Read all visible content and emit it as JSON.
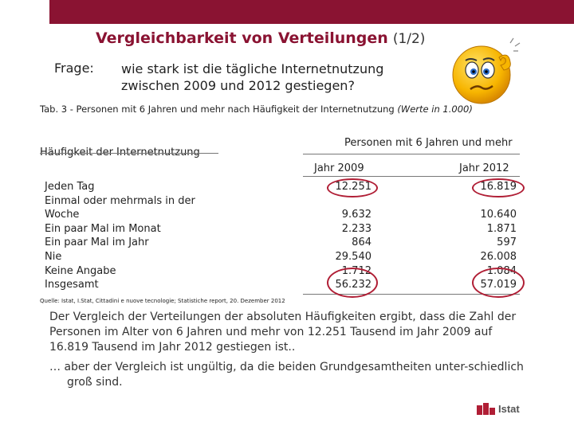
{
  "header": {
    "title": "Vergleichbarkeit von Verteilungen",
    "part": "(1/2)",
    "colors": {
      "brand": "#8a1332",
      "highlight": "#b01e35"
    }
  },
  "question": {
    "label": "Frage:",
    "line1": "wie stark ist die tägliche Internetnutzung",
    "line2": "zwischen 2009 und 2012 gestiegen?",
    "icon": "confused-smiley-icon"
  },
  "table": {
    "caption": "Tab. 3 - Personen mit 6 Jahren und mehr nach Häufigkeit der Internetnutzung",
    "caption_note": "(Werte in 1.000)",
    "left_header": "Häufigkeit der Internetnutzung",
    "right_header": "Personen mit 6 Jahren und mehr",
    "year_2009": "Jahr 2009",
    "year_2012": "Jahr 2012",
    "rows": [
      {
        "label_lines": [
          "Jeden Tag"
        ],
        "v2009": "12.251",
        "v2012": "16.819"
      },
      {
        "label_lines": [
          "Einmal oder mehrmals in der",
          "Woche"
        ],
        "v2009": "9.632",
        "v2012": "10.640"
      },
      {
        "label_lines": [
          "Ein paar Mal im Monat"
        ],
        "v2009": "2.233",
        "v2012": "1.871"
      },
      {
        "label_lines": [
          "Ein paar Mal im Jahr"
        ],
        "v2009": "864",
        "v2012": "597"
      },
      {
        "label_lines": [
          "Nie"
        ],
        "v2009": "29.540",
        "v2012": "26.008"
      },
      {
        "label_lines": [
          "Keine Angabe"
        ],
        "v2009": "1.712",
        "v2012": "1.084"
      },
      {
        "label_lines": [
          "Insgesamt"
        ],
        "v2009": "56.232",
        "v2012": "57.019"
      }
    ],
    "source": "Quelle: Istat, I.Stat, Cittadini e nuove tecnologie; Statistiche report, 20. Dezember 2012"
  },
  "body": {
    "paragraph1": "Der Vergleich der Verteilungen der absoluten Häufigkeiten ergibt, dass die Zahl der Personen im Alter von 6 Jahren und mehr von 12.251 Tausend im Jahr 2009 auf 16.819 Tausend im Jahr 2012 gestiegen ist..",
    "paragraph2": "… aber der Vergleich ist ungültig, da die beiden Grundgesamtheiten unter-schiedlich groß sind."
  },
  "footer": {
    "logo_text": "Istat"
  }
}
